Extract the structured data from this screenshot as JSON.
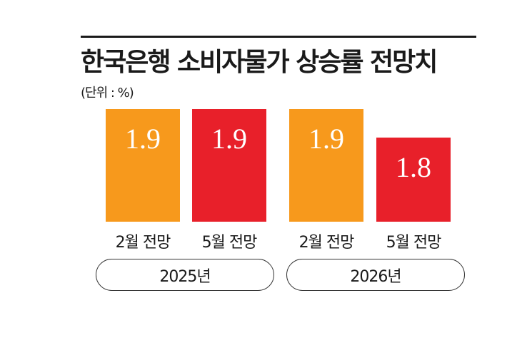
{
  "chart_data": {
    "type": "bar",
    "title": "한국은행 소비자물가 상승률 전망치",
    "unit_label": "(단위 : %)",
    "groups": [
      "2025년",
      "2026년"
    ],
    "categories": [
      "2월 전망",
      "5월 전망",
      "2월 전망",
      "5월 전망"
    ],
    "values": [
      1.9,
      1.9,
      1.9,
      1.8
    ],
    "value_labels": [
      "1.9",
      "1.9",
      "1.9",
      "1.8"
    ],
    "bar_colors": [
      "#f7991c",
      "#e8202a",
      "#f7991c",
      "#e8202a"
    ],
    "grid": false,
    "legend": "none"
  }
}
